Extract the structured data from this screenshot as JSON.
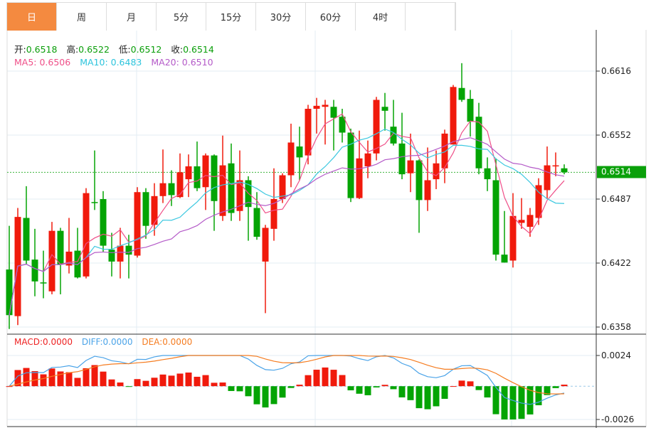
{
  "tabs": [
    {
      "label": "日",
      "active": true
    },
    {
      "label": "周"
    },
    {
      "label": "月"
    },
    {
      "label": "5分"
    },
    {
      "label": "15分"
    },
    {
      "label": "30分"
    },
    {
      "label": "60分"
    },
    {
      "label": "4时"
    }
  ],
  "ohlc": {
    "open_label": "开:",
    "open": "0.6518",
    "high_label": "高:",
    "high": "0.6522",
    "low_label": "低:",
    "low": "0.6512",
    "close_label": "收:",
    "close": "0.6514"
  },
  "ma": {
    "ma5": "MA5: 0.6506",
    "ma10": "MA10: 0.6483",
    "ma20": "MA20: 0.6510"
  },
  "macd_legend": {
    "macd": "MACD:0.0000",
    "diff": "DIFF:0.0000",
    "dea": "DEA:0.0000"
  },
  "price_axis": {
    "ticks": [
      "0.6616",
      "0.6552",
      "0.6487",
      "0.6422",
      "0.6358"
    ],
    "current": "0.6514"
  },
  "macd_axis": {
    "ticks": [
      "0.0024",
      "-0.0026"
    ]
  },
  "colors": {
    "up": "#f01a0c",
    "down": "#04a404",
    "ma5": "#ef4f88",
    "ma10": "#3cc8e0",
    "ma20": "#b45ac8",
    "diff": "#4aa3e8",
    "dea": "#f57c20",
    "tab_active": "#f48a40"
  },
  "chart_data": {
    "type": "candlestick",
    "fields": [
      "open",
      "high",
      "low",
      "close"
    ],
    "price_range": [
      0.6358,
      0.6616
    ],
    "macd_range": [
      -0.0026,
      0.0024
    ],
    "candles": [
      [
        0.6416,
        0.646,
        0.6356,
        0.637
      ],
      [
        0.6369,
        0.6478,
        0.636,
        0.6469
      ],
      [
        0.6468,
        0.65,
        0.6421,
        0.6425
      ],
      [
        0.6426,
        0.6457,
        0.6389,
        0.6404
      ],
      [
        0.6403,
        0.6435,
        0.6387,
        0.6402
      ],
      [
        0.6394,
        0.6464,
        0.6391,
        0.6455
      ],
      [
        0.6455,
        0.6458,
        0.6391,
        0.6421
      ],
      [
        0.642,
        0.6468,
        0.6412,
        0.6434
      ],
      [
        0.6435,
        0.6458,
        0.6407,
        0.6408
      ],
      [
        0.6409,
        0.6498,
        0.6407,
        0.6493
      ],
      [
        0.6484,
        0.6536,
        0.6476,
        0.6483
      ],
      [
        0.6487,
        0.6495,
        0.6434,
        0.644
      ],
      [
        0.6436,
        0.6453,
        0.6409,
        0.6424
      ],
      [
        0.6424,
        0.6458,
        0.6407,
        0.644
      ],
      [
        0.644,
        0.6451,
        0.6407,
        0.6431
      ],
      [
        0.643,
        0.6499,
        0.6428,
        0.6494
      ],
      [
        0.6494,
        0.6498,
        0.6447,
        0.646
      ],
      [
        0.6461,
        0.6503,
        0.645,
        0.649
      ],
      [
        0.649,
        0.6537,
        0.6483,
        0.6503
      ],
      [
        0.6503,
        0.6516,
        0.648,
        0.6491
      ],
      [
        0.6489,
        0.6533,
        0.6488,
        0.6514
      ],
      [
        0.6507,
        0.6532,
        0.6489,
        0.652
      ],
      [
        0.652,
        0.6545,
        0.6495,
        0.6498
      ],
      [
        0.6499,
        0.6533,
        0.6476,
        0.6531
      ],
      [
        0.6531,
        0.6532,
        0.6455,
        0.6485
      ],
      [
        0.647,
        0.6551,
        0.6465,
        0.6521
      ],
      [
        0.6523,
        0.6543,
        0.6465,
        0.6473
      ],
      [
        0.6475,
        0.6536,
        0.6465,
        0.6506
      ],
      [
        0.6506,
        0.651,
        0.6445,
        0.6479
      ],
      [
        0.6478,
        0.6494,
        0.6446,
        0.6449
      ],
      [
        0.6424,
        0.6461,
        0.6372,
        0.6458
      ],
      [
        0.6457,
        0.6518,
        0.6445,
        0.6487
      ],
      [
        0.6487,
        0.6513,
        0.6483,
        0.6511
      ],
      [
        0.6511,
        0.6563,
        0.6499,
        0.6544
      ],
      [
        0.654,
        0.656,
        0.6506,
        0.6529
      ],
      [
        0.6531,
        0.6582,
        0.6522,
        0.6578
      ],
      [
        0.6578,
        0.6589,
        0.6553,
        0.6581
      ],
      [
        0.658,
        0.6587,
        0.6542,
        0.6582
      ],
      [
        0.658,
        0.6587,
        0.6536,
        0.6569
      ],
      [
        0.657,
        0.6578,
        0.6544,
        0.6554
      ],
      [
        0.6554,
        0.6558,
        0.6484,
        0.6488
      ],
      [
        0.6488,
        0.6556,
        0.6487,
        0.6528
      ],
      [
        0.652,
        0.6546,
        0.6508,
        0.6533
      ],
      [
        0.6533,
        0.659,
        0.6526,
        0.6587
      ],
      [
        0.658,
        0.6594,
        0.6556,
        0.6576
      ],
      [
        0.656,
        0.6587,
        0.6541,
        0.6543
      ],
      [
        0.6543,
        0.6574,
        0.6507,
        0.6512
      ],
      [
        0.6513,
        0.6553,
        0.6494,
        0.6526
      ],
      [
        0.6526,
        0.6527,
        0.6453,
        0.6486
      ],
      [
        0.6486,
        0.6539,
        0.6475,
        0.6506
      ],
      [
        0.6507,
        0.6536,
        0.6497,
        0.6523
      ],
      [
        0.6518,
        0.6557,
        0.6503,
        0.6553
      ],
      [
        0.6542,
        0.6602,
        0.6542,
        0.66
      ],
      [
        0.6599,
        0.6624,
        0.6585,
        0.6587
      ],
      [
        0.6588,
        0.6597,
        0.655,
        0.6565
      ],
      [
        0.657,
        0.6584,
        0.6512,
        0.6518
      ],
      [
        0.6518,
        0.6529,
        0.6495,
        0.6507
      ],
      [
        0.6506,
        0.6528,
        0.6425,
        0.6431
      ],
      [
        0.6431,
        0.6475,
        0.6423,
        0.6423
      ],
      [
        0.6425,
        0.6493,
        0.6418,
        0.647
      ],
      [
        0.6463,
        0.6488,
        0.6457,
        0.6466
      ],
      [
        0.6459,
        0.6478,
        0.6449,
        0.6471
      ],
      [
        0.6468,
        0.6508,
        0.6461,
        0.6501
      ],
      [
        0.6496,
        0.654,
        0.6487,
        0.6521
      ],
      [
        0.652,
        0.6534,
        0.651,
        0.6521
      ],
      [
        0.6518,
        0.6522,
        0.6512,
        0.6514
      ]
    ]
  }
}
